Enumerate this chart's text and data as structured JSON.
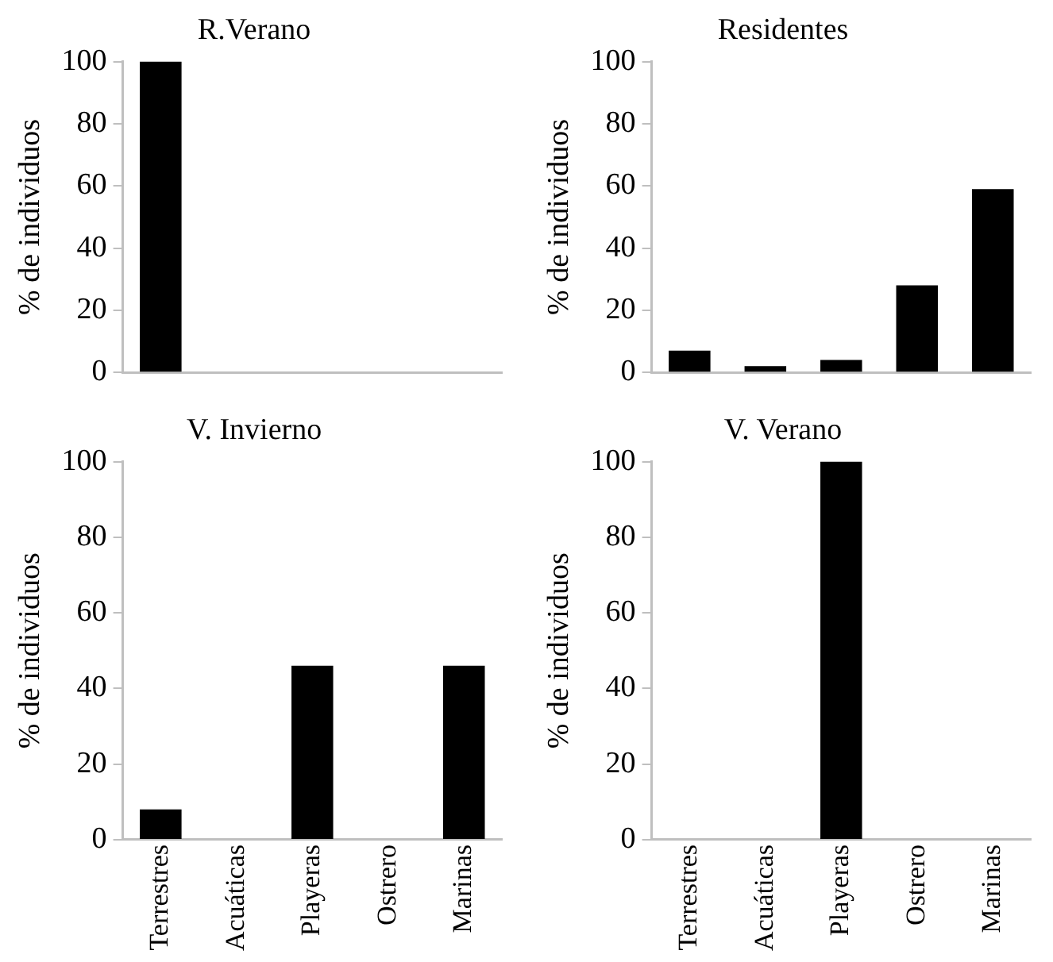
{
  "chart_data": [
    {
      "type": "bar",
      "title": "R.Verano",
      "ylabel": "% de individuos",
      "categories": [
        null,
        null,
        null,
        null,
        null
      ],
      "values": [
        100,
        0,
        0,
        0,
        0
      ],
      "color": "#000000",
      "ylim": [
        0,
        100
      ],
      "yticks": [
        0,
        20,
        40,
        60,
        80,
        100
      ],
      "grid": false,
      "legend": false,
      "tick_labels": "y"
    },
    {
      "type": "bar",
      "title": "Residentes",
      "ylabel": "% de individuos",
      "categories": [
        null,
        null,
        null,
        null,
        null
      ],
      "values": [
        7,
        2,
        4,
        28,
        59
      ],
      "color": "#000000",
      "ylim": [
        0,
        100
      ],
      "yticks": [
        0,
        20,
        40,
        60,
        80,
        100
      ],
      "grid": false,
      "legend": false,
      "tick_labels": "y"
    },
    {
      "type": "bar",
      "title": "V. Invierno",
      "ylabel": "% de individuos",
      "categories": [
        "Terrestres",
        "Acuáticas",
        "Playeras",
        "Ostrero",
        "Marinas"
      ],
      "values": [
        8,
        0,
        46,
        0,
        46
      ],
      "color": "#000000",
      "ylim": [
        0,
        100
      ],
      "yticks": [
        0,
        20,
        40,
        60,
        80,
        100
      ],
      "grid": false,
      "legend": false
    },
    {
      "type": "bar",
      "title": "V. Verano",
      "ylabel": "% de individuos",
      "categories": [
        "Terrestres",
        "Acuáticas",
        "Playeras",
        "Ostrero",
        "Marinas"
      ],
      "values": [
        0,
        0,
        100,
        0,
        0
      ],
      "color": "#000000",
      "ylim": [
        0,
        100
      ],
      "yticks": [
        0,
        20,
        40,
        60,
        80,
        100
      ],
      "grid": false,
      "legend": false
    }
  ]
}
